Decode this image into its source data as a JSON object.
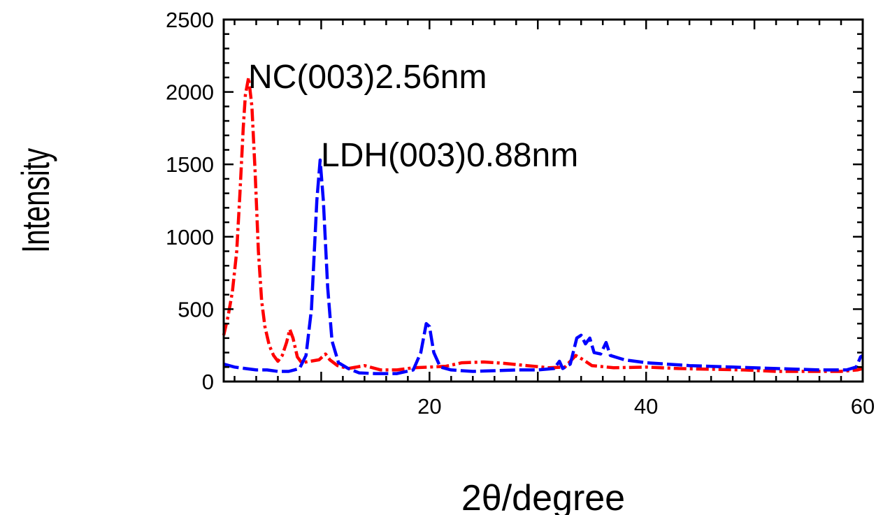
{
  "chart_data": {
    "type": "line",
    "xlabel": "2θ/degree",
    "ylabel": "Intensity",
    "xlim": [
      1,
      60
    ],
    "ylim": [
      0,
      2500
    ],
    "x_ticks": [
      20,
      40,
      60
    ],
    "y_ticks": [
      0,
      500,
      1000,
      1500,
      2000,
      2500
    ],
    "grid": false,
    "legend": "none",
    "annotations": [
      {
        "text": "NC(003)2.56nm",
        "x": 3.5,
        "y": 2100
      },
      {
        "text": "LDH(003)0.88nm",
        "x": 10.0,
        "y": 1560
      }
    ],
    "series": [
      {
        "color": "#ff0000",
        "dash": "dashdot",
        "points": [
          [
            1.0,
            320
          ],
          [
            1.4,
            450
          ],
          [
            1.8,
            620
          ],
          [
            2.2,
            900
          ],
          [
            2.5,
            1300
          ],
          [
            2.8,
            1750
          ],
          [
            3.0,
            1980
          ],
          [
            3.3,
            2100
          ],
          [
            3.6,
            1900
          ],
          [
            3.9,
            1450
          ],
          [
            4.2,
            900
          ],
          [
            4.5,
            560
          ],
          [
            4.8,
            380
          ],
          [
            5.2,
            250
          ],
          [
            5.6,
            180
          ],
          [
            6.0,
            140
          ],
          [
            6.4,
            180
          ],
          [
            6.8,
            270
          ],
          [
            7.1,
            360
          ],
          [
            7.4,
            300
          ],
          [
            7.8,
            170
          ],
          [
            8.2,
            130
          ],
          [
            9.0,
            140
          ],
          [
            9.8,
            150
          ],
          [
            10.4,
            190
          ],
          [
            10.8,
            150
          ],
          [
            11.5,
            110
          ],
          [
            12.5,
            90
          ],
          [
            14.0,
            110
          ],
          [
            15.5,
            80
          ],
          [
            17.0,
            80
          ],
          [
            18.5,
            95
          ],
          [
            20.0,
            100
          ],
          [
            21.5,
            105
          ],
          [
            23.0,
            130
          ],
          [
            25.0,
            135
          ],
          [
            27.0,
            125
          ],
          [
            29.0,
            110
          ],
          [
            31.0,
            95
          ],
          [
            32.5,
            100
          ],
          [
            33.5,
            180
          ],
          [
            34.2,
            150
          ],
          [
            35.0,
            110
          ],
          [
            37.0,
            95
          ],
          [
            40.0,
            100
          ],
          [
            43.0,
            90
          ],
          [
            46.0,
            85
          ],
          [
            49.0,
            80
          ],
          [
            52.0,
            70
          ],
          [
            55.0,
            70
          ],
          [
            58.0,
            70
          ],
          [
            59.5,
            80
          ],
          [
            60.0,
            90
          ]
        ]
      },
      {
        "color": "#0000ff",
        "dash": "dashed",
        "points": [
          [
            1.0,
            120
          ],
          [
            2.0,
            100
          ],
          [
            3.0,
            90
          ],
          [
            4.0,
            80
          ],
          [
            5.0,
            80
          ],
          [
            6.0,
            70
          ],
          [
            7.0,
            70
          ],
          [
            8.0,
            90
          ],
          [
            8.6,
            180
          ],
          [
            9.1,
            500
          ],
          [
            9.6,
            1250
          ],
          [
            9.9,
            1530
          ],
          [
            10.2,
            1250
          ],
          [
            10.6,
            650
          ],
          [
            11.0,
            280
          ],
          [
            11.6,
            130
          ],
          [
            12.5,
            90
          ],
          [
            13.5,
            60
          ],
          [
            15.0,
            55
          ],
          [
            17.0,
            55
          ],
          [
            18.5,
            80
          ],
          [
            19.2,
            200
          ],
          [
            19.7,
            400
          ],
          [
            20.0,
            380
          ],
          [
            20.4,
            200
          ],
          [
            21.0,
            100
          ],
          [
            22.0,
            80
          ],
          [
            24.0,
            70
          ],
          [
            26.0,
            75
          ],
          [
            28.0,
            80
          ],
          [
            30.0,
            80
          ],
          [
            31.5,
            90
          ],
          [
            32.0,
            140
          ],
          [
            32.3,
            90
          ],
          [
            33.0,
            120
          ],
          [
            33.6,
            300
          ],
          [
            34.0,
            320
          ],
          [
            34.4,
            260
          ],
          [
            34.8,
            300
          ],
          [
            35.2,
            200
          ],
          [
            35.8,
            190
          ],
          [
            36.3,
            270
          ],
          [
            36.7,
            180
          ],
          [
            38.0,
            150
          ],
          [
            40.0,
            130
          ],
          [
            44.0,
            110
          ],
          [
            48.0,
            100
          ],
          [
            52.0,
            90
          ],
          [
            56.0,
            80
          ],
          [
            58.5,
            80
          ],
          [
            59.4,
            100
          ],
          [
            59.8,
            170
          ],
          [
            60.0,
            180
          ]
        ]
      }
    ]
  }
}
